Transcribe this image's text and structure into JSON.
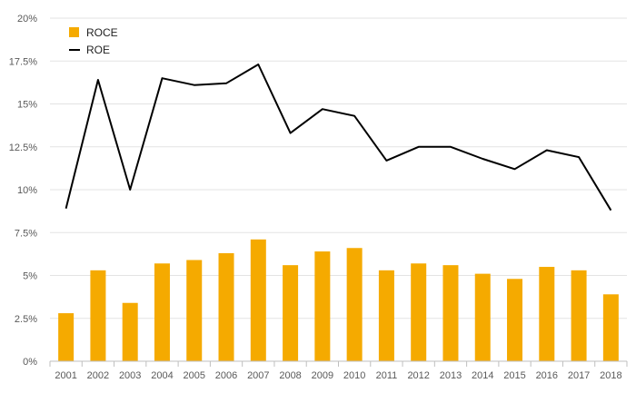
{
  "chart_data": {
    "type": "bar",
    "categories": [
      "2001",
      "2002",
      "2003",
      "2004",
      "2005",
      "2006",
      "2007",
      "2008",
      "2009",
      "2010",
      "2011",
      "2012",
      "2013",
      "2014",
      "2015",
      "2016",
      "2017",
      "2018"
    ],
    "series": [
      {
        "name": "ROCE",
        "type": "bar",
        "color": "#f5aa00",
        "values": [
          2.8,
          5.3,
          3.4,
          5.7,
          5.9,
          6.3,
          7.1,
          5.6,
          6.4,
          6.6,
          5.3,
          5.7,
          5.6,
          5.1,
          4.8,
          5.5,
          5.3,
          3.9
        ]
      },
      {
        "name": "ROE",
        "type": "line",
        "color": "#000000",
        "values": [
          8.9,
          16.4,
          10.0,
          16.5,
          16.1,
          16.2,
          17.3,
          13.3,
          14.7,
          14.3,
          11.7,
          12.5,
          12.5,
          11.8,
          11.2,
          12.3,
          11.9,
          8.8
        ]
      }
    ],
    "yticks": [
      "0%",
      "2.5%",
      "5%",
      "7.5%",
      "10%",
      "12.5%",
      "15%",
      "17.5%",
      "20%"
    ],
    "ylim": [
      0,
      20
    ],
    "grid": true,
    "legend": "top-left",
    "title": "",
    "xlabel": "",
    "ylabel": ""
  }
}
